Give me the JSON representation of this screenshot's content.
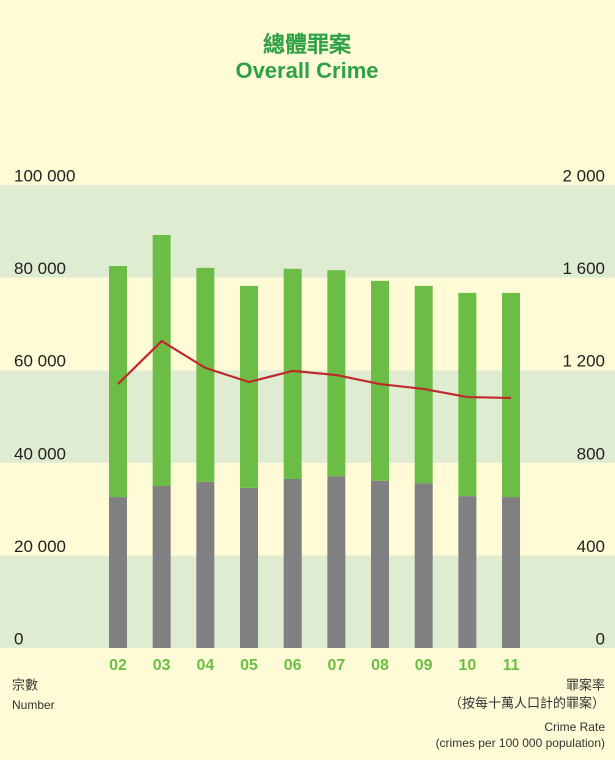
{
  "chart_data": {
    "type": "bar",
    "title": "總體罪案",
    "subtitle": "Overall Crime",
    "y_label": [
      "宗數",
      "Number"
    ],
    "y2_label": [
      "罪案率",
      "（按每十萬人口計的罪案）",
      "Crime Rate",
      "(crimes per 100 000 population)"
    ],
    "categories": [
      "02",
      "03",
      "04",
      "05",
      "06",
      "07",
      "08",
      "09",
      "10",
      "11"
    ],
    "stacked": true,
    "band_colors": [
      "#dfecd2",
      "#fffbd6"
    ],
    "series": [
      {
        "color": "#808083",
        "values": [
          32600,
          35000,
          35900,
          34600,
          36500,
          37100,
          36100,
          35600,
          32800,
          32600
        ]
      },
      {
        "color": "#6cbd45",
        "values": [
          49900,
          54200,
          46200,
          43600,
          45400,
          44500,
          43200,
          42600,
          43900,
          44100
        ]
      },
      {
        "type": "line",
        "axis": "y2",
        "color": "#c0282d",
        "values": [
          1140,
          1326,
          1210,
          1149,
          1197,
          1179,
          1140,
          1119,
          1084,
          1080
        ]
      }
    ],
    "ylim": [
      0,
      100000
    ],
    "yticks": [
      0,
      {
        "value": 20000,
        "label": "20 000"
      },
      {
        "value": 40000,
        "label": "40 000"
      },
      {
        "value": 60000,
        "label": "60 000"
      },
      {
        "value": 80000,
        "label": "80 000"
      },
      {
        "value": 100000,
        "label": "100 000"
      }
    ],
    "y2lim": [
      0,
      2000
    ],
    "y2ticks": [
      0,
      400,
      800,
      {
        "value": 1200,
        "label": "1 200"
      },
      {
        "value": 1600,
        "label": "1 600"
      },
      {
        "value": 2000,
        "label": "2 000"
      }
    ]
  }
}
